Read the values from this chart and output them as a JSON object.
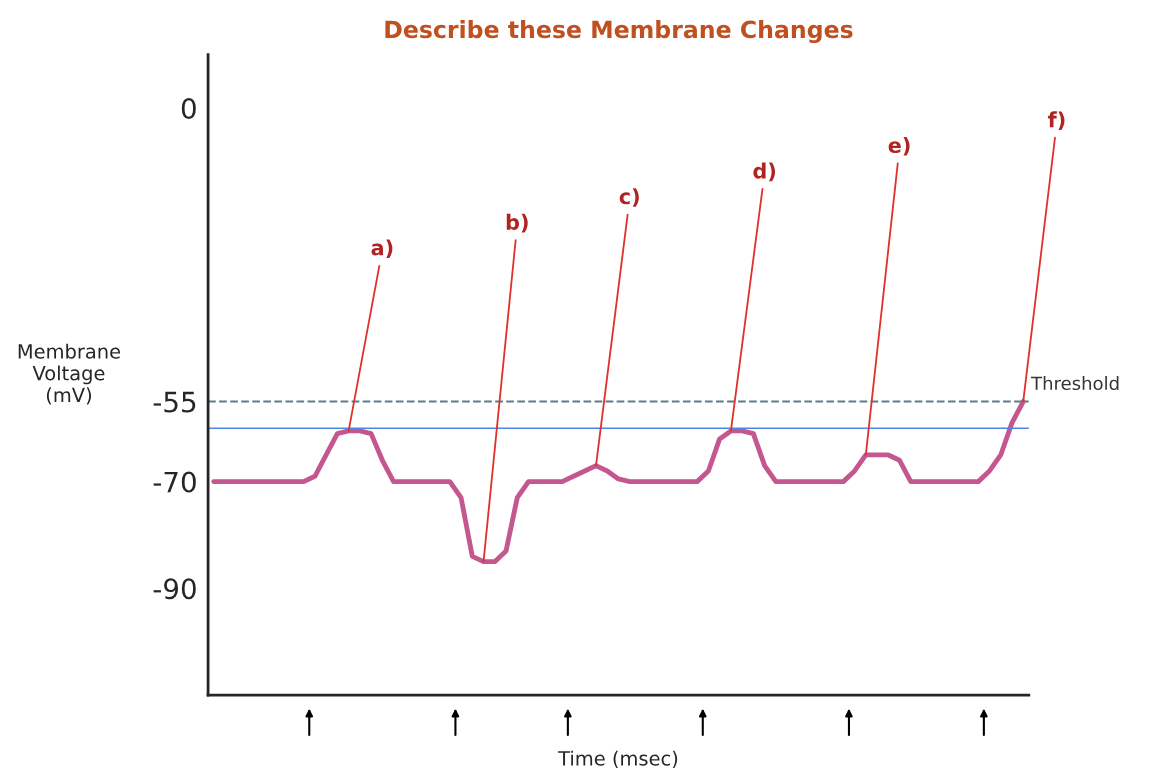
{
  "chart_data": {
    "type": "line",
    "title": "Describe these Membrane Changes",
    "xlabel": "Time (msec)",
    "ylabel": "Membrane\nVoltage\n(mV)",
    "categories": [
      null,
      null,
      null,
      null,
      null,
      null,
      null,
      null,
      null,
      null,
      null,
      null,
      null,
      null,
      null,
      null,
      null,
      null,
      null,
      null,
      null,
      null,
      null,
      null,
      null,
      null,
      null,
      null,
      null,
      null,
      null,
      null,
      null,
      null,
      null,
      null,
      null,
      null,
      null,
      null,
      null,
      null,
      null,
      null,
      null,
      null,
      null,
      null,
      null,
      null,
      null,
      null,
      null,
      null,
      null,
      null,
      null,
      null,
      null,
      null,
      null,
      null,
      null,
      null,
      null,
      null,
      null,
      null,
      null,
      null,
      null,
      null,
      null
    ],
    "series": [
      {
        "color": "#c4578f",
        "values": [
          -70,
          -70,
          -70,
          -70,
          -70,
          -70,
          -70,
          -70,
          -70,
          -69,
          -65,
          -61,
          -60.5,
          -60.5,
          -61,
          -66,
          -70,
          -70,
          -70,
          -70,
          -70,
          -70,
          -73,
          -84,
          -85,
          -85,
          -83,
          -73,
          -70,
          -70,
          -70,
          -70,
          -69,
          -68,
          -67,
          -68,
          -69.5,
          -70,
          -70,
          -70,
          -70,
          -70,
          -70,
          -70,
          -68,
          -62,
          -60.5,
          -60.5,
          -61,
          -67,
          -70,
          -70,
          -70,
          -70,
          -70,
          -70,
          -70,
          -68,
          -65,
          -65,
          -65,
          -66,
          -70,
          -70,
          -70,
          -70,
          -70,
          -70,
          -70,
          -68,
          -65,
          -59,
          -55
        ]
      }
    ],
    "ylim": [
      -110,
      10
    ],
    "yticks": [
      0,
      -55,
      -70,
      -90
    ],
    "tick_labels": "y",
    "grid": false,
    "legend": false,
    "marker": "none",
    "line_style": "solid",
    "ref_lines": [
      {
        "axis": "y",
        "value": -55,
        "label": "Threshold",
        "color": "#5a7d8c",
        "line_style": "dashed"
      },
      {
        "axis": "y",
        "value": -60,
        "color": "#4a86e8",
        "line_style": "solid"
      }
    ],
    "annotations": [
      "a)",
      "b)",
      "c)",
      "d)",
      "e)",
      "f)"
    ]
  }
}
